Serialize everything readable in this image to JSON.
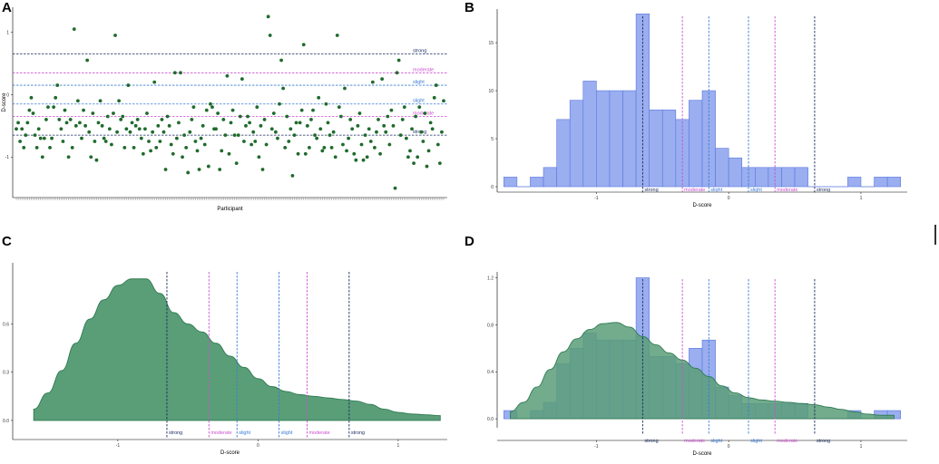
{
  "panels": [
    {
      "id": "A",
      "letter": "A"
    },
    {
      "id": "B",
      "letter": "B"
    },
    {
      "id": "C",
      "letter": "C"
    },
    {
      "id": "D",
      "letter": "D"
    }
  ],
  "colors": {
    "point": "#1f6b2c",
    "bar_fill": "#9aaef0",
    "bar_stroke": "#5b78e0",
    "density_fill": "#5a9e78",
    "density_stroke": "#2e7a50",
    "strong": "#1a2a5e",
    "moderate": "#cc4fcf",
    "slight": "#3a7bd5"
  },
  "thresholds": [
    {
      "label": "strong",
      "value": -0.65,
      "kind": "strong"
    },
    {
      "label": "moderate",
      "value": -0.35,
      "kind": "moderate"
    },
    {
      "label": "slight",
      "value": -0.15,
      "kind": "slight"
    },
    {
      "label": "slight",
      "value": 0.15,
      "kind": "slight"
    },
    {
      "label": "moderate",
      "value": 0.35,
      "kind": "moderate"
    },
    {
      "label": "strong",
      "value": 0.65,
      "kind": "strong"
    }
  ],
  "chart_data": [
    {
      "panel": "A",
      "type": "scatter",
      "title": "",
      "xlabel": "Participant",
      "ylabel": "D-score",
      "ylim": [
        -1.65,
        1.4
      ],
      "yticks": [
        "-1",
        "0",
        "1"
      ],
      "yticks_values": [
        -1,
        0,
        1
      ],
      "hlines_labels_order": [
        "strong",
        "moderate",
        "slight",
        "slight",
        "moderate",
        "strong"
      ],
      "values": [
        -0.55,
        -0.45,
        -0.75,
        -0.55,
        -0.85,
        -0.65,
        -0.45,
        -0.25,
        -0.05,
        -0.3,
        -0.65,
        -0.85,
        -0.55,
        -0.7,
        -1.0,
        -0.7,
        -0.4,
        -0.2,
        -0.85,
        -0.7,
        -0.2,
        -0.05,
        0.15,
        -0.4,
        -0.55,
        -0.75,
        -0.25,
        -0.45,
        -1.0,
        -0.4,
        -0.85,
        1.05,
        -0.5,
        -0.1,
        -0.45,
        -0.7,
        -0.25,
        -0.5,
        0.55,
        -0.6,
        -1.0,
        -0.3,
        -0.75,
        -1.05,
        -0.45,
        -0.1,
        -0.5,
        -0.7,
        -0.75,
        -0.35,
        -0.55,
        -0.8,
        -0.3,
        0.95,
        -0.6,
        -0.1,
        -0.4,
        -0.35,
        -0.85,
        -0.55,
        0.15,
        -0.6,
        -0.45,
        -0.85,
        -0.5,
        -0.4,
        -0.55,
        -0.7,
        -0.95,
        -0.55,
        -0.3,
        -0.75,
        -0.9,
        -0.6,
        0.2,
        -0.85,
        -0.5,
        -0.75,
        -0.4,
        -0.6,
        -1.2,
        -0.35,
        -0.5,
        -0.8,
        -0.95,
        0.35,
        -0.7,
        -0.45,
        0.35,
        -1.0,
        -0.65,
        -0.85,
        -1.25,
        -0.6,
        -0.4,
        -0.2,
        -0.75,
        -0.9,
        -1.2,
        -0.7,
        -0.5,
        -0.8,
        -0.25,
        -1.15,
        -0.15,
        -0.2,
        -0.55,
        -0.55,
        -0.3,
        -1.2,
        -0.9,
        -0.4,
        -0.65,
        0.3,
        -0.95,
        -0.45,
        -0.25,
        -0.65,
        -1.1,
        -0.65,
        -0.35,
        0.25,
        -0.75,
        -0.5,
        -0.35,
        -0.45,
        -0.8,
        -0.6,
        -0.75,
        -0.2,
        -1.0,
        -0.5,
        -1.2,
        -0.4,
        -0.8,
        1.25,
        0.95,
        -0.55,
        -0.3,
        -0.6,
        -0.7,
        -0.15,
        0.55,
        0.1,
        -0.85,
        -0.35,
        -0.75,
        -0.55,
        -1.3,
        -0.65,
        -0.45,
        -0.95,
        -0.45,
        -0.25,
        0.8,
        -0.95,
        -0.5,
        -0.85,
        -0.4,
        -0.25,
        -0.65,
        -0.7,
        -0.05,
        -0.55,
        -0.9,
        -0.85,
        -0.15,
        -0.45,
        -0.65,
        -0.85,
        -0.6,
        -1.0,
        0.95,
        -0.2,
        -0.35,
        -0.8,
        0.1,
        -0.9,
        -0.7,
        -0.4,
        -0.55,
        -0.95,
        -1.05,
        -0.5,
        -0.3,
        -0.8,
        -1.05,
        -0.65,
        -1.0,
        -0.55,
        -0.75,
        0.2,
        -0.85,
        -0.6,
        -0.4,
        -0.95,
        0.25,
        -0.5,
        -0.6,
        -0.35,
        -0.8,
        -0.25,
        -0.5,
        -1.5,
        0.35,
        0.55,
        -0.65,
        -0.4,
        -0.2,
        -0.7,
        -1.0,
        -0.9,
        -0.55,
        -1.1,
        -0.35,
        -1.0,
        -0.2,
        -0.6,
        -0.75,
        -0.3,
        -1.15,
        -0.9,
        -0.45,
        -0.55,
        -0.05,
        0.15,
        -0.8,
        -1.1,
        -0.6,
        -0.1
      ]
    },
    {
      "panel": "B",
      "type": "bar",
      "title": "",
      "xlabel": "D-score",
      "ylabel": "",
      "xlim": [
        -1.75,
        1.35
      ],
      "ylim": [
        0,
        18.5
      ],
      "xticks": [
        "-1",
        "0",
        "1"
      ],
      "xticks_values": [
        -1,
        0,
        1
      ],
      "yticks": [
        "0",
        "5",
        "10",
        "15"
      ],
      "yticks_values": [
        0,
        5,
        10,
        15
      ],
      "bin_start": -1.7,
      "bin_width": 0.1,
      "values": [
        1,
        0,
        1,
        2,
        7,
        9,
        11,
        10,
        10,
        10,
        18,
        8,
        8,
        7,
        9,
        10,
        4,
        3,
        2,
        2,
        2,
        2,
        2,
        0,
        0,
        0,
        1,
        0,
        1,
        1
      ],
      "note": "bins continue: positions -1.7 to 1.3"
    },
    {
      "panel": "C",
      "type": "area",
      "title": "",
      "xlabel": "D-score",
      "ylabel": "",
      "xlim": [
        -1.75,
        1.35
      ],
      "ylim": [
        -0.04,
        0.98
      ],
      "xticks": [
        "-1",
        "0",
        "1"
      ],
      "xticks_values": [
        -1,
        0,
        1
      ],
      "yticks": [
        "0.0",
        "0.3",
        "0.6"
      ],
      "yticks_values": [
        0.0,
        0.3,
        0.6
      ],
      "x": [
        -1.6,
        -1.5,
        -1.4,
        -1.3,
        -1.2,
        -1.1,
        -1.0,
        -0.9,
        -0.8,
        -0.7,
        -0.6,
        -0.5,
        -0.4,
        -0.3,
        -0.2,
        -0.1,
        0.0,
        0.1,
        0.2,
        0.3,
        0.4,
        0.5,
        0.6,
        0.7,
        0.8,
        0.9,
        1.0,
        1.1,
        1.2,
        1.3
      ],
      "values": [
        0.07,
        0.17,
        0.31,
        0.48,
        0.63,
        0.75,
        0.84,
        0.88,
        0.88,
        0.79,
        0.67,
        0.6,
        0.55,
        0.48,
        0.4,
        0.33,
        0.26,
        0.21,
        0.18,
        0.16,
        0.15,
        0.14,
        0.13,
        0.12,
        0.1,
        0.07,
        0.05,
        0.04,
        0.035,
        0.03
      ]
    },
    {
      "panel": "D",
      "type": "bar",
      "title": "",
      "xlabel": "D-score",
      "ylabel": "",
      "xlim": [
        -1.75,
        1.35
      ],
      "ylim": [
        -0.03,
        1.25
      ],
      "xticks": [
        "-1",
        "0",
        "1"
      ],
      "xticks_values": [
        -1,
        0,
        1
      ],
      "yticks": [
        "0.0",
        "0.4",
        "0.8",
        "1.2"
      ],
      "yticks_values": [
        0.0,
        0.4,
        0.8,
        1.2
      ],
      "bin_start": -1.7,
      "bin_width": 0.1,
      "series": [
        {
          "name": "histogram (density)",
          "values": [
            0.07,
            0.0,
            0.07,
            0.14,
            0.47,
            0.6,
            0.73,
            0.67,
            0.67,
            0.67,
            1.2,
            0.53,
            0.53,
            0.47,
            0.6,
            0.67,
            0.27,
            0.2,
            0.13,
            0.13,
            0.13,
            0.13,
            0.13,
            0.0,
            0.0,
            0.0,
            0.07,
            0.0,
            0.07,
            0.07
          ]
        },
        {
          "name": "density",
          "x": [
            -1.65,
            -1.55,
            -1.45,
            -1.35,
            -1.25,
            -1.15,
            -1.05,
            -0.95,
            -0.85,
            -0.75,
            -0.65,
            -0.55,
            -0.45,
            -0.35,
            -0.25,
            -0.15,
            -0.05,
            0.05,
            0.15,
            0.25,
            0.35,
            0.45,
            0.55,
            0.65,
            0.75,
            0.85,
            0.95,
            1.05,
            1.15,
            1.25
          ],
          "values": [
            0.06,
            0.14,
            0.27,
            0.42,
            0.57,
            0.68,
            0.76,
            0.81,
            0.82,
            0.78,
            0.7,
            0.63,
            0.56,
            0.5,
            0.43,
            0.36,
            0.28,
            0.22,
            0.18,
            0.16,
            0.15,
            0.14,
            0.13,
            0.12,
            0.1,
            0.08,
            0.06,
            0.04,
            0.03,
            0.03
          ]
        }
      ]
    }
  ]
}
